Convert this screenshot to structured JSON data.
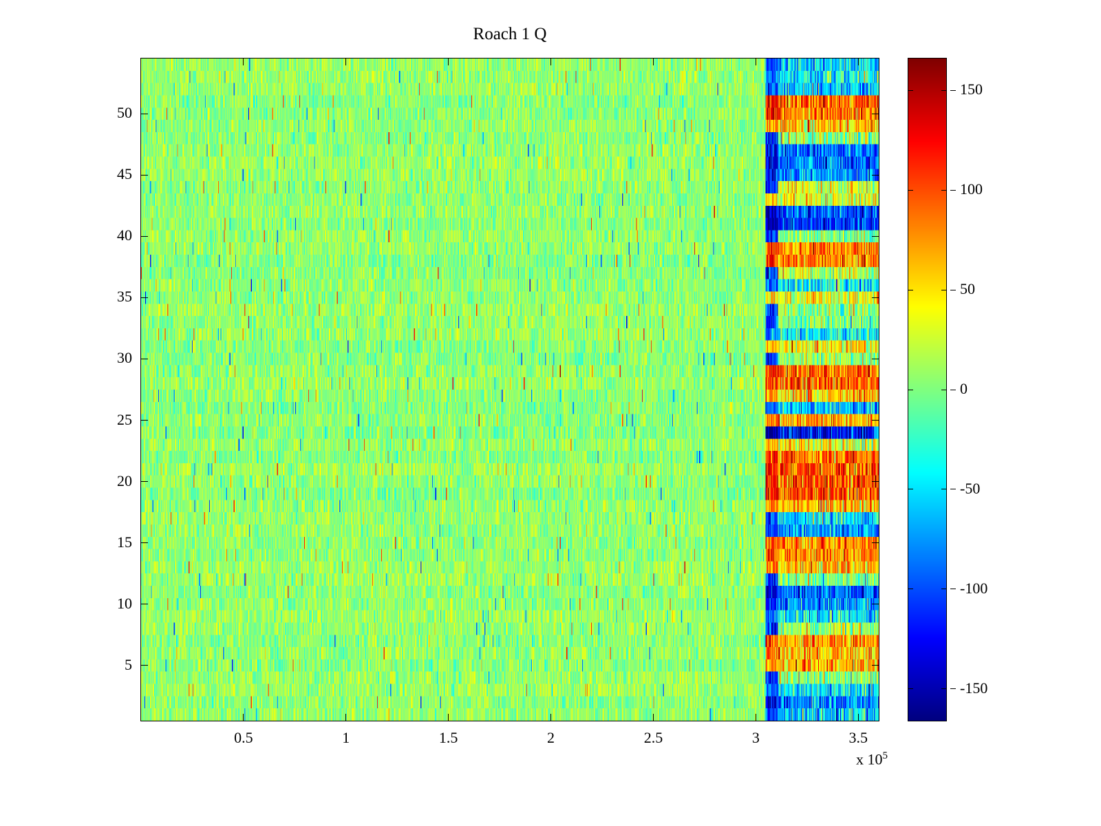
{
  "title": "Roach 1 Q",
  "x_axis": {
    "min": 0,
    "max": 360000,
    "exponent_text": "x 10",
    "exponent_power": "5",
    "ticks": [
      {
        "value": 50000,
        "label": "0.5"
      },
      {
        "value": 100000,
        "label": "1"
      },
      {
        "value": 150000,
        "label": "1.5"
      },
      {
        "value": 200000,
        "label": "2"
      },
      {
        "value": 250000,
        "label": "2.5"
      },
      {
        "value": 300000,
        "label": "3"
      },
      {
        "value": 350000,
        "label": "3.5"
      }
    ]
  },
  "y_axis": {
    "min": 0.5,
    "max": 54.5,
    "ticks": [
      {
        "value": 5,
        "label": "5"
      },
      {
        "value": 10,
        "label": "10"
      },
      {
        "value": 15,
        "label": "15"
      },
      {
        "value": 20,
        "label": "20"
      },
      {
        "value": 25,
        "label": "25"
      },
      {
        "value": 30,
        "label": "30"
      },
      {
        "value": 35,
        "label": "35"
      },
      {
        "value": 40,
        "label": "40"
      },
      {
        "value": 45,
        "label": "45"
      },
      {
        "value": 50,
        "label": "50"
      }
    ]
  },
  "colorbar": {
    "min": -166,
    "max": 166,
    "ticks": [
      {
        "value": 150,
        "label": "150"
      },
      {
        "value": 100,
        "label": "100"
      },
      {
        "value": 50,
        "label": "50"
      },
      {
        "value": 0,
        "label": "0"
      },
      {
        "value": -50,
        "label": "-50"
      },
      {
        "value": -100,
        "label": "-100"
      },
      {
        "value": -150,
        "label": "-150"
      }
    ]
  },
  "chart_data": {
    "type": "heatmap",
    "title": "Roach 1 Q",
    "colormap": "jet",
    "caxis": [
      -166,
      166
    ],
    "x_range": [
      0,
      360000
    ],
    "y_range": [
      0.5,
      54.5
    ],
    "n_rows": 54,
    "n_cols": 900,
    "seed": 42,
    "baseline_noise": {
      "mean": 6,
      "std": 16,
      "row_bias_spread": 10,
      "speckle_prob": 0.015,
      "speckle_min": 45,
      "speckle_max": 110
    },
    "edge_band": {
      "x_start": 305000,
      "x_end": 311000,
      "std": 25,
      "warm_offset": 25,
      "cold_offset": -45,
      "neutral_value": -110
    },
    "tail_band": {
      "x_start": 311000,
      "x_end": 360000,
      "std": 30,
      "speckle_prob": 0.05,
      "speckle_amp": 60
    },
    "row_tail_means": [
      -60,
      -85,
      -50,
      5,
      65,
      60,
      70,
      10,
      -45,
      -70,
      -95,
      0,
      65,
      80,
      75,
      -70,
      -55,
      60,
      95,
      100,
      95,
      90,
      35,
      -120,
      65,
      -60,
      55,
      85,
      90,
      5,
      40,
      -45,
      0,
      5,
      35,
      -45,
      20,
      85,
      80,
      0,
      -110,
      -100,
      30,
      25,
      -70,
      -85,
      -80,
      5,
      55,
      85,
      90,
      -60,
      -40,
      -55
    ],
    "legend_position": "right-colorbar",
    "grid": false
  }
}
